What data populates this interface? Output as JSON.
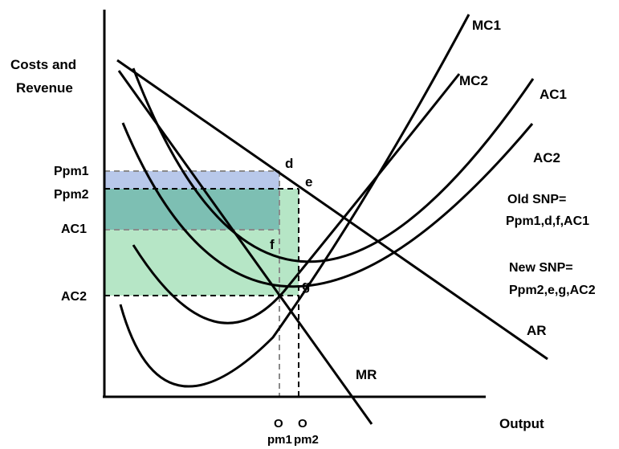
{
  "axes": {
    "y_label_line1": "Costs and",
    "y_label_line2": "Revenue",
    "x_label": "Output"
  },
  "price_labels": {
    "ppm1": "Ppm1",
    "ppm2": "Ppm2",
    "ac1": "AC1",
    "ac2": "AC2"
  },
  "output_labels": {
    "q1_top": "O",
    "q1_bottom": "pm1",
    "q2_top": "O",
    "q2_bottom": "pm2"
  },
  "curves": {
    "mc1": "MC1",
    "mc2": "MC2",
    "ac1": "AC1",
    "ac2": "AC2",
    "ar": "AR",
    "mr": "MR"
  },
  "points": {
    "d": "d",
    "e": "e",
    "f": "f",
    "g": "g"
  },
  "annotations": {
    "old_snp_line1": "Old SNP=",
    "old_snp_line2": "Ppm1,d,f,AC1",
    "new_snp_line1": "New SNP=",
    "new_snp_line2": "Ppm2,e,g,AC2"
  },
  "colors": {
    "old_profit_fill": "#b8c8ea",
    "overlap_fill": "#7dbfb3",
    "new_profit_fill": "#b6e6c6"
  }
}
